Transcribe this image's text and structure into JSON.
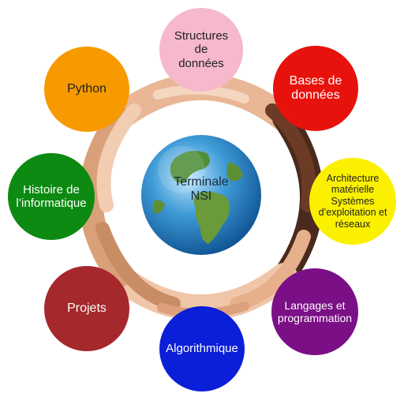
{
  "center": {
    "label": "Terminale\nNSI"
  },
  "topics": [
    {
      "id": "structures",
      "label": "Structures\nde\ndonnées",
      "bg": "#f6b8cb",
      "fg": "#222222"
    },
    {
      "id": "bases",
      "label": "Bases de\ndonnées",
      "bg": "#e8120c",
      "fg": "#ffffff"
    },
    {
      "id": "architecture",
      "label": "Architecture\nmatérielle\nSystèmes\nd’exploitation et\nréseaux",
      "bg": "#fbf000",
      "fg": "#222222"
    },
    {
      "id": "langages",
      "label": "Langages et\nprogrammation",
      "bg": "#7a0f86",
      "fg": "#ffffff"
    },
    {
      "id": "algorithmique",
      "label": "Algorithmique",
      "bg": "#0b1fd8",
      "fg": "#ffffff"
    },
    {
      "id": "projets",
      "label": "Projets",
      "bg": "#a5282c",
      "fg": "#ffffff"
    },
    {
      "id": "histoire",
      "label": "Histoire de\nl’informatique",
      "bg": "#0c8a12",
      "fg": "#ffffff"
    },
    {
      "id": "python",
      "label": "Python",
      "bg": "#f79a00",
      "fg": "#222222"
    }
  ]
}
